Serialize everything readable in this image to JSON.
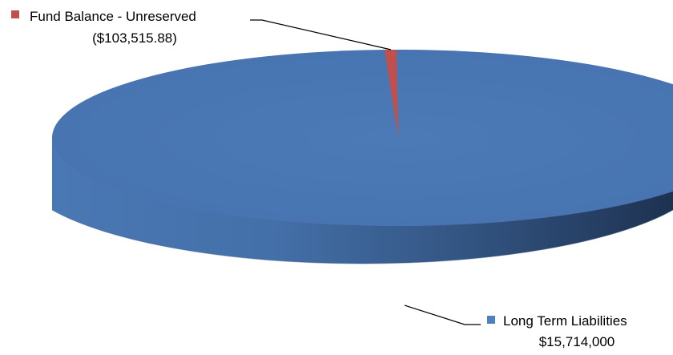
{
  "chart_data": {
    "type": "pie",
    "title": "",
    "slices": [
      {
        "name": "Fund Balance - Unreserved",
        "value_label": "($103,515.88)",
        "value": -103515.88,
        "color": "#C0504D"
      },
      {
        "name": "Long Term Liabilities",
        "value_label": "$15,714,000",
        "value": 15714000,
        "color": "#4F81BD"
      }
    ],
    "legend": "none",
    "style": "3d"
  }
}
